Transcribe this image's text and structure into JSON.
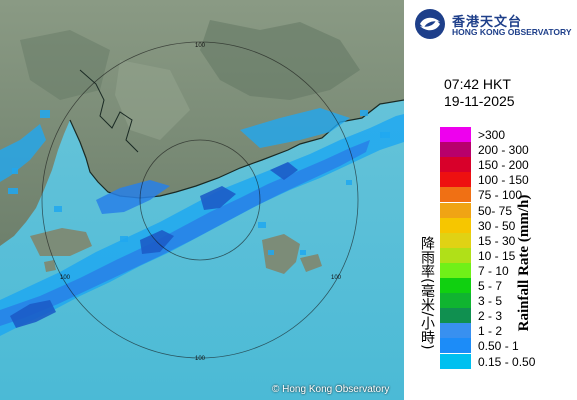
{
  "header": {
    "org_name_zh": "香港天文台",
    "org_name_en": "HONG KONG OBSERVATORY"
  },
  "timestamp": {
    "time": "07:42 HKT",
    "date": "19-11-2025"
  },
  "legend": {
    "title_zh": "降雨率(毫米/小時)",
    "title_en": "Rainfall Rate (mm/h)",
    "classes": [
      {
        "label": ">300",
        "color": "#ee00ee"
      },
      {
        "label": "200 - 300",
        "color": "#b8006c"
      },
      {
        "label": "150 - 200",
        "color": "#d8002a"
      },
      {
        "label": "100 - 150",
        "color": "#ee1010"
      },
      {
        "label": "75 - 100",
        "color": "#f07014"
      },
      {
        "label": "50- 75",
        "color": "#f0a414"
      },
      {
        "label": "30 - 50",
        "color": "#f6c600"
      },
      {
        "label": "15 - 30",
        "color": "#e0d214"
      },
      {
        "label": "10 - 15",
        "color": "#b0e018"
      },
      {
        "label": "7 - 10",
        "color": "#70f018"
      },
      {
        "label": "5 - 7",
        "color": "#10d010"
      },
      {
        "label": "3 - 5",
        "color": "#10b430"
      },
      {
        "label": "2 - 3",
        "color": "#109050"
      },
      {
        "label": "1 - 2",
        "color": "#3890f0"
      },
      {
        "label": "0.50 - 1",
        "color": "#1c8cf8"
      },
      {
        "label": "0.15 - 0.50",
        "color": "#00c0f0"
      }
    ]
  },
  "map": {
    "range_rings": [
      {
        "label": "100"
      },
      {
        "label": "100"
      },
      {
        "label": "100"
      },
      {
        "label": "100"
      }
    ],
    "sea_color": "#56c0d8",
    "land_color": "#7c8c78",
    "rain_light_color": "#20a8f0",
    "rain_mid_color": "#2880e8",
    "rain_heavy_color": "#1c5cc8"
  },
  "footer": {
    "copyright": "© Hong Kong Observatory"
  }
}
